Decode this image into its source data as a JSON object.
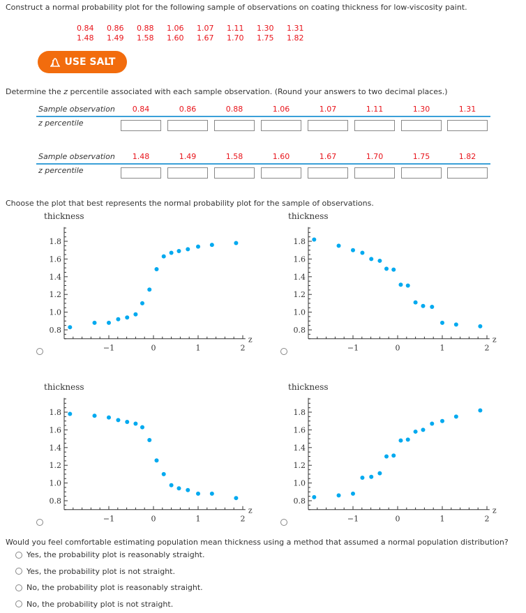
{
  "intro": "Construct a normal probability plot for the following sample of observations on coating thickness for low-viscosity paint.",
  "observations_row1": [
    "0.84",
    "0.86",
    "0.88",
    "1.06",
    "1.07",
    "1.11",
    "1.30",
    "1.31"
  ],
  "observations_row2": [
    "1.48",
    "1.49",
    "1.58",
    "1.60",
    "1.67",
    "1.70",
    "1.75",
    "1.82"
  ],
  "salt_button": "USE SALT",
  "instruction_prefix": "Determine the ",
  "instruction_z": "z",
  "instruction_suffix": " percentile associated with each sample observation. (Round your answers to two decimal places.)",
  "table": {
    "row_label": "Sample observation",
    "input_label": "z percentile"
  },
  "plot_prompt": "Choose the plot that best represents the normal probability plot for the sample of observations.",
  "accent_color": "#3aa0d8",
  "point_color": "#00a9ef",
  "chart_data": [
    {
      "type": "scatter",
      "ylabel": "thickness",
      "xlabel": "z",
      "xlim": [
        -2,
        2.06
      ],
      "ylim": [
        0.7,
        1.96
      ],
      "xticks": [
        "−1",
        "0",
        "1",
        "2"
      ],
      "yticks": [
        "0.8",
        "1.0",
        "1.2",
        "1.4",
        "1.6",
        "1.8"
      ],
      "x": [
        -1.87,
        -1.32,
        -1.0,
        -0.79,
        -0.59,
        -0.4,
        -0.25,
        -0.09,
        0.07,
        0.23,
        0.4,
        0.57,
        0.77,
        1.0,
        1.31,
        1.85
      ],
      "y": [
        0.83,
        0.88,
        0.88,
        0.92,
        0.94,
        0.975,
        1.1,
        1.255,
        1.485,
        1.63,
        1.67,
        1.69,
        1.71,
        1.74,
        1.76,
        1.78
      ]
    },
    {
      "type": "scatter",
      "ylabel": "thickness",
      "xlabel": "z",
      "xlim": [
        -2,
        2.06
      ],
      "ylim": [
        0.7,
        1.96
      ],
      "xticks": [
        "−1",
        "0",
        "1",
        "2"
      ],
      "yticks": [
        "0.8",
        "1.0",
        "1.2",
        "1.4",
        "1.6",
        "1.8"
      ],
      "x": [
        -1.87,
        -1.32,
        -1.0,
        -0.79,
        -0.59,
        -0.4,
        -0.25,
        -0.09,
        0.07,
        0.23,
        0.4,
        0.57,
        0.77,
        1.0,
        1.31,
        1.85
      ],
      "y": [
        1.82,
        1.75,
        1.7,
        1.67,
        1.6,
        1.58,
        1.49,
        1.48,
        1.31,
        1.3,
        1.11,
        1.07,
        1.06,
        0.88,
        0.86,
        0.84
      ]
    },
    {
      "type": "scatter",
      "ylabel": "thickness",
      "xlabel": "z",
      "xlim": [
        -2,
        2.06
      ],
      "ylim": [
        0.7,
        1.96
      ],
      "xticks": [
        "−1",
        "0",
        "1",
        "2"
      ],
      "yticks": [
        "0.8",
        "1.0",
        "1.2",
        "1.4",
        "1.6",
        "1.8"
      ],
      "x": [
        -1.87,
        -1.32,
        -1.0,
        -0.79,
        -0.59,
        -0.4,
        -0.25,
        -0.09,
        0.07,
        0.23,
        0.4,
        0.57,
        0.77,
        1.0,
        1.31,
        1.85
      ],
      "y": [
        1.78,
        1.76,
        1.74,
        1.71,
        1.69,
        1.67,
        1.63,
        1.485,
        1.255,
        1.1,
        0.975,
        0.94,
        0.92,
        0.88,
        0.88,
        0.83
      ]
    },
    {
      "type": "scatter",
      "ylabel": "thickness",
      "xlabel": "z",
      "xlim": [
        -2,
        2.06
      ],
      "ylim": [
        0.7,
        1.96
      ],
      "xticks": [
        "−1",
        "0",
        "1",
        "2"
      ],
      "yticks": [
        "0.8",
        "1.0",
        "1.2",
        "1.4",
        "1.6",
        "1.8"
      ],
      "x": [
        -1.87,
        -1.32,
        -1.0,
        -0.79,
        -0.59,
        -0.4,
        -0.25,
        -0.09,
        0.07,
        0.23,
        0.4,
        0.57,
        0.77,
        1.0,
        1.31,
        1.85
      ],
      "y": [
        0.84,
        0.86,
        0.88,
        1.06,
        1.07,
        1.11,
        1.3,
        1.31,
        1.48,
        1.49,
        1.58,
        1.6,
        1.67,
        1.7,
        1.75,
        1.82
      ]
    }
  ],
  "question": "Would you feel comfortable estimating population mean thickness using a method that assumed a normal population distribution?",
  "options": [
    "Yes, the probability plot is reasonably straight.",
    "Yes, the probability plot is not straight.",
    "No, the probability plot is reasonably straight.",
    "No, the probability plot is not straight."
  ]
}
